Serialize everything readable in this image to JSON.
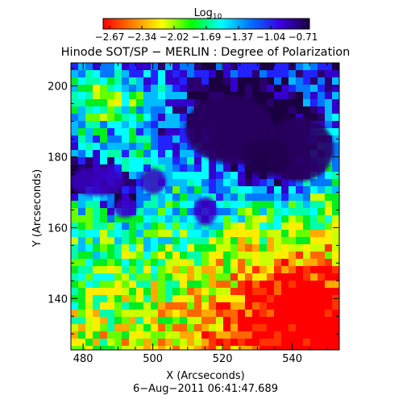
{
  "colorbar": {
    "label_main": "Log",
    "label_sub": "10",
    "ticks": [
      "−2.67",
      "−2.34",
      "−2.02",
      "−1.69",
      "−1.37",
      "−1.04",
      "−0.71"
    ],
    "colors": [
      "#ff0000",
      "#ff7f00",
      "#ffff00",
      "#00ff00",
      "#00ffff",
      "#0070ff",
      "#3a00e0",
      "#1a0040"
    ]
  },
  "chart_data": {
    "type": "heatmap",
    "title": "Hinode SOT/SP − MERLIN : Degree of Polarization",
    "xlabel": "X (Arcseconds)",
    "ylabel": "Y (Arcseconds)",
    "xlim": [
      476.5,
      553.5
    ],
    "ylim": [
      125.5,
      206.5
    ],
    "xticks": [
      480,
      500,
      520,
      540
    ],
    "yticks": [
      140,
      160,
      180,
      200
    ],
    "colorbar_range_log10": [
      -2.67,
      -0.71
    ],
    "timestamp": "6−Aug−2011 06:41:47.689"
  }
}
